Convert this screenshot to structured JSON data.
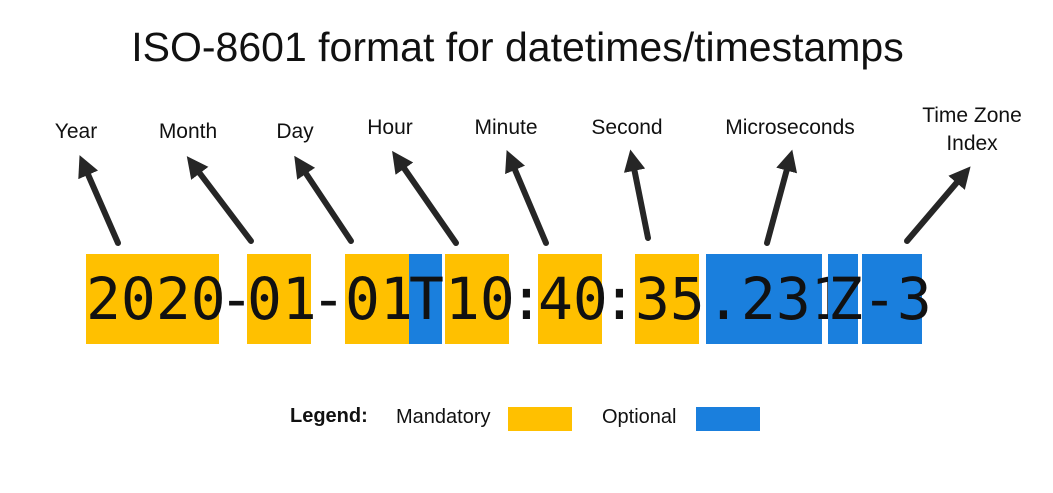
{
  "title": "ISO-8601 format for datetimes/timestamps",
  "colors": {
    "mandatory": "#FFC000",
    "optional": "#1A7FDD",
    "arrow": "#262626"
  },
  "labels": {
    "year": "Year",
    "month": "Month",
    "day": "Day",
    "hour": "Hour",
    "minute": "Minute",
    "second": "Second",
    "microseconds": "Microseconds",
    "tz_line1": "Time Zone",
    "tz_line2": "Index"
  },
  "segments": {
    "year": "2020",
    "sep1": "-",
    "month": "01",
    "sep2": "-",
    "day": "01",
    "t": "T",
    "hour": "10",
    "sep3": ":",
    "minute": "40",
    "sep4": ":",
    "second": "35",
    "micro": ".231",
    "z": "Z",
    "tz": "-3"
  },
  "legend": {
    "title": "Legend:",
    "mandatory": "Mandatory",
    "optional": "Optional"
  }
}
